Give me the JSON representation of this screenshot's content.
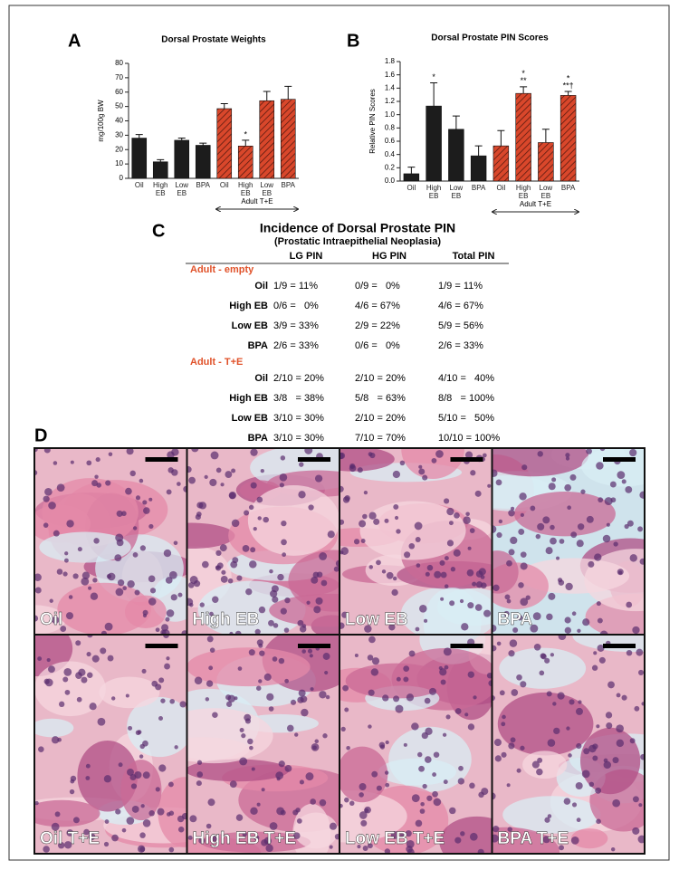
{
  "panel_labels": [
    "A",
    "B",
    "C",
    "D"
  ],
  "chart_data": [
    {
      "type": "bar",
      "title": "Dorsal Prostate Weights",
      "y_label": "mg/100g BW",
      "categories": [
        "Oil",
        "High EB",
        "Low EB",
        "BPA",
        "Oil",
        "High EB",
        "Low EB",
        "BPA"
      ],
      "values": [
        28,
        11.5,
        26.5,
        23,
        48.5,
        22.5,
        54,
        55
      ],
      "errors": [
        2.5,
        1.5,
        1.5,
        1.5,
        3.5,
        4,
        6.5,
        9
      ],
      "colors": [
        "#1c1c1c",
        "#1c1c1c",
        "#1c1c1c",
        "#1c1c1c",
        "#d9472b",
        "#d9472b",
        "#d9472b",
        "#d9472b"
      ],
      "hatch": [
        false,
        false,
        false,
        false,
        true,
        true,
        true,
        true
      ],
      "annotations": [
        [],
        [],
        [],
        [],
        [],
        [
          "*"
        ],
        [],
        []
      ],
      "group_label": "Adult T+E",
      "ylim": [
        0,
        80
      ],
      "yticks": [
        0,
        10,
        20,
        30,
        40,
        50,
        60,
        70,
        80
      ]
    },
    {
      "type": "bar",
      "title": "Dorsal Prostate PIN Scores",
      "y_label": "Relative PIN Scores",
      "categories": [
        "Oil",
        "High EB",
        "Low EB",
        "BPA",
        "Oil",
        "High EB",
        "Low EB",
        "BPA"
      ],
      "values": [
        0.11,
        1.13,
        0.78,
        0.38,
        0.53,
        1.32,
        0.58,
        1.29
      ],
      "errors": [
        0.1,
        0.35,
        0.2,
        0.15,
        0.23,
        0.1,
        0.2,
        0.06
      ],
      "colors": [
        "#1c1c1c",
        "#1c1c1c",
        "#1c1c1c",
        "#1c1c1c",
        "#d9472b",
        "#d9472b",
        "#d9472b",
        "#d9472b"
      ],
      "hatch": [
        false,
        false,
        false,
        false,
        true,
        true,
        true,
        true
      ],
      "annotations": [
        [],
        [
          "*"
        ],
        [],
        [],
        [],
        [
          "*",
          "**"
        ],
        [],
        [
          "*",
          "**†"
        ]
      ],
      "group_label": "Adult T+E",
      "ylim": [
        0,
        1.8
      ],
      "yticks": [
        {
          "value": 0,
          "label": "0.0"
        },
        0.2,
        0.4,
        0.6,
        0.8,
        {
          "value": 1,
          "label": "1.0"
        },
        1.2,
        1.4,
        1.6,
        1.8
      ]
    }
  ],
  "table": {
    "title": "Incidence of Dorsal Prostate PIN",
    "subtitle": "(Prostatic Intraepithelial Neoplasia)",
    "columns": [
      "LG PIN",
      "HG PIN",
      "Total PIN"
    ],
    "groups": [
      {
        "name": "Adult - empty",
        "rows": [
          {
            "label": "Oil",
            "cells": [
              "1/9 = 11%",
              "0/9 =   0%",
              "1/9 = 11%"
            ]
          },
          {
            "label": "High EB",
            "cells": [
              "0/6 =   0%",
              "4/6 = 67%",
              "4/6 = 67%"
            ]
          },
          {
            "label": "Low EB",
            "cells": [
              "3/9 = 33%",
              "2/9 = 22%",
              "5/9 = 56%"
            ]
          },
          {
            "label": "BPA",
            "cells": [
              "2/6 = 33%",
              "0/6 =   0%",
              "2/6 = 33%"
            ]
          }
        ]
      },
      {
        "name": "Adult - T+E",
        "rows": [
          {
            "label": "Oil",
            "cells": [
              "2/10 = 20%",
              "2/10 = 20%",
              "4/10 =   40%"
            ]
          },
          {
            "label": "High EB",
            "cells": [
              "3/8   = 38%",
              "5/8   = 63%",
              "8/8   = 100%"
            ]
          },
          {
            "label": "Low EB",
            "cells": [
              "3/10 = 30%",
              "2/10 = 20%",
              "5/10 =   50%"
            ]
          },
          {
            "label": "BPA",
            "cells": [
              "3/10 = 30%",
              "7/10 = 70%",
              "10/10 = 100%"
            ]
          }
        ]
      }
    ]
  },
  "histology": {
    "panels": [
      "Oil",
      "High EB",
      "Low EB",
      "BPA",
      "Oil T+E",
      "High EB T+E",
      "Low EB T+E",
      "BPA T+E"
    ]
  }
}
